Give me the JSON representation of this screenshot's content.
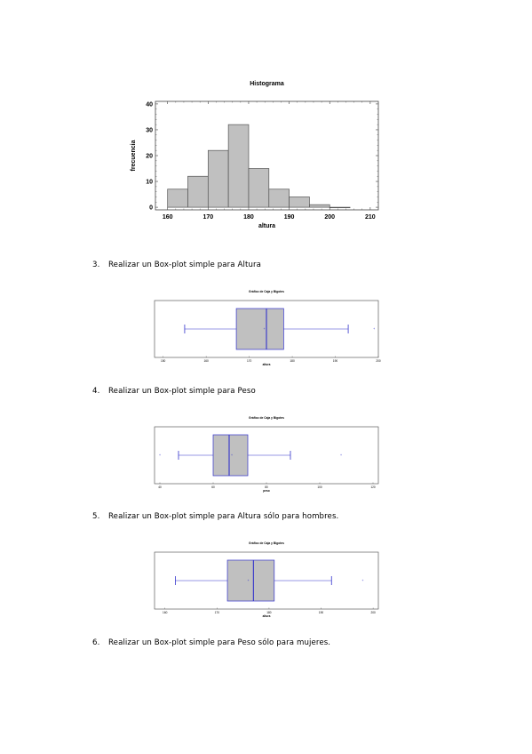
{
  "steps": [
    {
      "number": "3.",
      "text": "Realizar un Box-plot simple para Altura"
    },
    {
      "number": "4.",
      "text": "Realizar un Box-plot simple para Peso"
    },
    {
      "number": "5.",
      "text": "Realizar un Box-plot simple para Altura sólo para hombres."
    },
    {
      "number": "6.",
      "text": "Realizar un Box-plot simple para Peso sólo para mujeres."
    }
  ],
  "chart_data": [
    {
      "type": "bar",
      "title": "Histograma",
      "xlabel": "altura",
      "ylabel": "frecuencia",
      "bin_edges": [
        160,
        165,
        170,
        175,
        180,
        185,
        190,
        195,
        200,
        205
      ],
      "values": [
        7,
        12,
        22,
        32,
        15,
        7,
        4,
        1,
        0
      ],
      "xlim": [
        157,
        212
      ],
      "ylim": [
        -1,
        41
      ],
      "xticks": [
        160,
        170,
        180,
        190,
        200,
        210
      ],
      "yticks": [
        0,
        10,
        20,
        30,
        40
      ],
      "colors": {
        "bar": "#c0c0c0",
        "edge": "#555555"
      }
    },
    {
      "type": "box",
      "title": "Gráfico de Caja y Bigotes",
      "xlabel": "altura",
      "xlim": [
        148,
        200
      ],
      "xticks": [
        150,
        160,
        170,
        180,
        190,
        200
      ],
      "whisker_low": 155,
      "q1": 167,
      "median": 174,
      "q3": 178,
      "whisker_high": 193,
      "mean": 173.5,
      "outliers": [
        199
      ],
      "colors": {
        "box": "#c0c0c0",
        "line": "#3333cc"
      }
    },
    {
      "type": "box",
      "title": "Gráfico de Caja y Bigotes",
      "xlabel": "peso",
      "xlim": [
        38,
        122
      ],
      "xticks": [
        40,
        60,
        80,
        100,
        120
      ],
      "whisker_low": 47,
      "q1": 60,
      "median": 66,
      "q3": 73,
      "whisker_high": 89,
      "mean": 67,
      "outliers": [
        40,
        108
      ],
      "colors": {
        "box": "#c0c0c0",
        "line": "#3333cc"
      }
    },
    {
      "type": "box",
      "title": "Gráfico de Caja y Bigotes",
      "xlabel": "altura",
      "xlim": [
        158,
        201
      ],
      "xticks": [
        160,
        170,
        180,
        190,
        200
      ],
      "whisker_low": 162,
      "q1": 172,
      "median": 177,
      "q3": 181,
      "whisker_high": 192,
      "mean": 176,
      "outliers": [
        198
      ],
      "colors": {
        "box": "#c0c0c0",
        "line": "#3333cc"
      }
    }
  ]
}
